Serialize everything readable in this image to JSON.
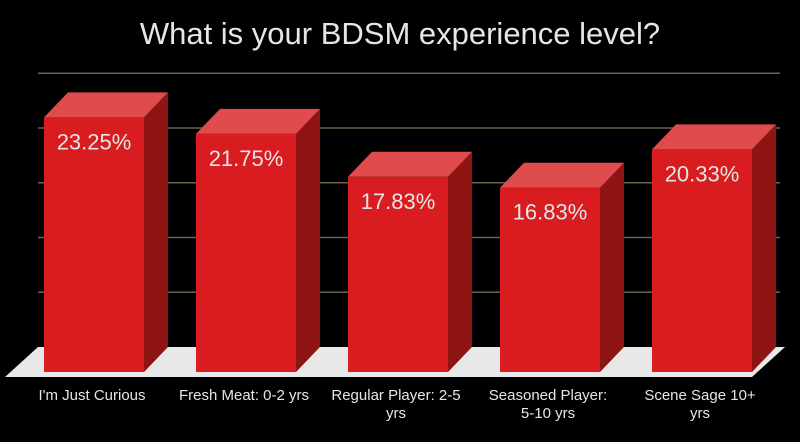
{
  "chart_data": {
    "type": "bar",
    "title": "What is your BDSM experience level?",
    "categories": [
      "I'm Just Curious",
      "Fresh Meat: 0-2 yrs",
      "Regular Player: 2-5 yrs",
      "Seasoned Player: 5-10 yrs",
      "Scene Sage 10+ yrs"
    ],
    "category_lines": [
      [
        "I'm Just Curious"
      ],
      [
        "Fresh Meat: 0-2 yrs"
      ],
      [
        "Regular Player: 2-5",
        "yrs"
      ],
      [
        "Seasoned Player:",
        "5-10 yrs"
      ],
      [
        "Scene Sage 10+",
        "yrs"
      ]
    ],
    "values": [
      23.25,
      21.75,
      17.83,
      16.83,
      20.33
    ],
    "data_labels": [
      "23.25%",
      "21.75%",
      "17.83%",
      "16.83%",
      "20.33%"
    ],
    "ylim": [
      0,
      25
    ],
    "grid": true,
    "style": "3d",
    "colors": {
      "bar": "#d81c1f",
      "bar_top": "#e04b4d",
      "bar_side": "#8f1414",
      "floor": "#e8e8e8",
      "grid": "#6b6250",
      "text": "#e6e6e6"
    }
  }
}
